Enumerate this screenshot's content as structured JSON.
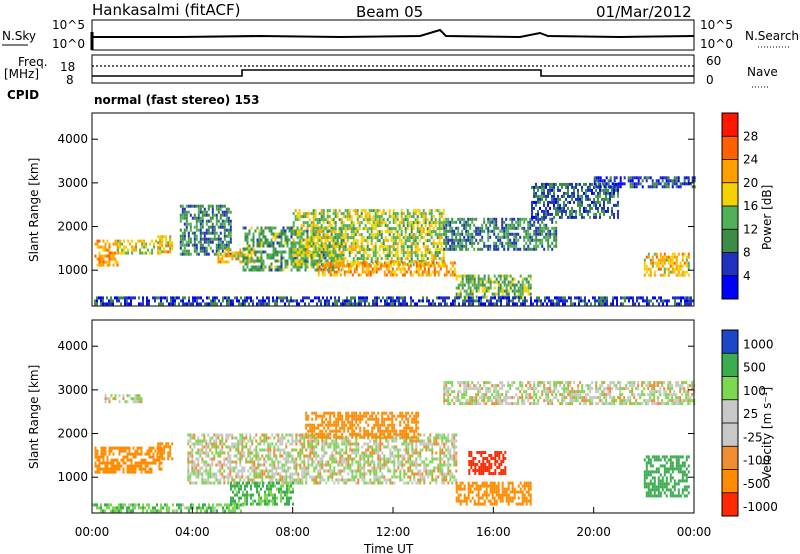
{
  "header": {
    "title": "Hankasalmi (fitACF)",
    "beam": "Beam 05",
    "date": "01/Mar/2012"
  },
  "top_panels": {
    "nsky_label": "N.Sky",
    "nsky_ticks": [
      "10^5",
      "10^0"
    ],
    "nsearch_label": "N.Search",
    "nsearch_ticks": [
      "10^5",
      "10^0"
    ],
    "freq_label": "Freq.",
    "freq_unit": "[MHz]",
    "freq_ticks": [
      "18",
      "8"
    ],
    "nave_label": "Nave",
    "nave_ticks": [
      "60",
      "0"
    ],
    "cpid_label": "CPID",
    "cpid_text": "normal (fast stereo) 153"
  },
  "colors": {
    "power_scale": [
      "#0000ff",
      "#2030c0",
      "#3c8c46",
      "#52b05a",
      "#f5d200",
      "#ffa000",
      "#ff6000",
      "#ff1500"
    ],
    "velocity_scale": [
      "#1e46c8",
      "#3cac50",
      "#7cd850",
      "#c8c8c8",
      "#c8c8c8",
      "#f08c32",
      "#ff8c00",
      "#ff2800"
    ],
    "ground_scatter": "#c8c8c8"
  },
  "chart_data": [
    {
      "type": "heatmap",
      "panel": "power",
      "ylabel": "Slant Range [km]",
      "yticks": [
        "1000",
        "2000",
        "3000",
        "4000"
      ],
      "ylim": [
        180,
        4600
      ],
      "xlim": [
        0,
        24
      ],
      "colorbar_label": "Power [dB]",
      "colorbar_ticks": [
        "4",
        "8",
        "12",
        "16",
        "20",
        "24",
        "28"
      ],
      "colorbar_range": [
        0,
        32
      ],
      "scatter_regions": [
        {
          "t0": 0.1,
          "t1": 1.0,
          "r0": 1100,
          "r1": 1700,
          "level": 22
        },
        {
          "t0": 1.0,
          "t1": 2.8,
          "r0": 1400,
          "r1": 1700,
          "level": 18
        },
        {
          "t0": 2.6,
          "t1": 3.2,
          "r0": 1400,
          "r1": 1800,
          "level": 20
        },
        {
          "t0": 3.5,
          "t1": 5.5,
          "r0": 1400,
          "r1": 2500,
          "level": 10
        },
        {
          "t0": 5.0,
          "t1": 6.5,
          "r0": 1200,
          "r1": 1500,
          "level": 20
        },
        {
          "t0": 6.0,
          "t1": 10.0,
          "r0": 1000,
          "r1": 2000,
          "level": 12
        },
        {
          "t0": 8.0,
          "t1": 14.0,
          "r0": 1100,
          "r1": 2400,
          "level": 16
        },
        {
          "t0": 9.0,
          "t1": 14.5,
          "r0": 900,
          "r1": 1200,
          "level": 22
        },
        {
          "t0": 14.0,
          "t1": 18.5,
          "r0": 1500,
          "r1": 2200,
          "level": 10
        },
        {
          "t0": 14.5,
          "t1": 17.5,
          "r0": 400,
          "r1": 900,
          "level": 14
        },
        {
          "t0": 17.5,
          "t1": 21.0,
          "r0": 2200,
          "r1": 3000,
          "level": 8
        },
        {
          "t0": 20.0,
          "t1": 24.0,
          "r0": 2900,
          "r1": 3150,
          "level": 6
        },
        {
          "t0": 22.0,
          "t1": 23.8,
          "r0": 900,
          "r1": 1400,
          "level": 20
        },
        {
          "t0": 0.0,
          "t1": 24.0,
          "r0": 200,
          "r1": 400,
          "level": 6
        }
      ]
    },
    {
      "type": "heatmap",
      "panel": "velocity",
      "ylabel": "Slant Range [km]",
      "yticks": [
        "1000",
        "2000",
        "3000",
        "4000"
      ],
      "ylim": [
        180,
        4600
      ],
      "xlim": [
        0,
        24
      ],
      "xlabel": "Time UT",
      "xticks": [
        "00:00",
        "04:00",
        "08:00",
        "12:00",
        "16:00",
        "20:00",
        "00:00"
      ],
      "colorbar_label": "Velocity [m s⁻¹]",
      "colorbar_ticks": [
        "1000",
        "500",
        "100",
        "25",
        "-25",
        "-100",
        "-500",
        "-1000"
      ],
      "scatter_regions": [
        {
          "t0": 0.1,
          "t1": 2.8,
          "r0": 1100,
          "r1": 1700,
          "level": -300
        },
        {
          "t0": 2.6,
          "t1": 3.2,
          "r0": 1400,
          "r1": 1800,
          "level": -400
        },
        {
          "t0": 0.5,
          "t1": 2.0,
          "r0": 2700,
          "r1": 2900,
          "level": 10
        },
        {
          "t0": 3.8,
          "t1": 14.5,
          "r0": 900,
          "r1": 2000,
          "level": 10
        },
        {
          "t0": 14.0,
          "t1": 24.0,
          "r0": 2700,
          "r1": 3200,
          "level": 10
        },
        {
          "t0": 8.5,
          "t1": 13.0,
          "r0": 1900,
          "r1": 2500,
          "level": -150
        },
        {
          "t0": 14.5,
          "t1": 17.5,
          "r0": 400,
          "r1": 900,
          "level": -200
        },
        {
          "t0": 15.0,
          "t1": 16.5,
          "r0": 1100,
          "r1": 1600,
          "level": -700
        },
        {
          "t0": 22.0,
          "t1": 23.8,
          "r0": 600,
          "r1": 1500,
          "level": 400
        },
        {
          "t0": 5.5,
          "t1": 8.0,
          "r0": 400,
          "r1": 900,
          "level": 120
        },
        {
          "t0": 0.0,
          "t1": 6.0,
          "r0": 200,
          "r1": 400,
          "level": 80
        }
      ]
    }
  ]
}
